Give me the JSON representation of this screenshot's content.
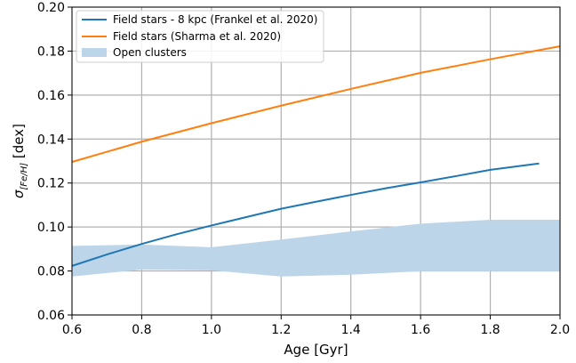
{
  "chart_data": {
    "type": "line",
    "xlabel": "Age [Gyr]",
    "ylabel_main": "σ",
    "ylabel_sub": "[Fe/H]",
    "ylabel_unit": " [dex]",
    "xlim": [
      0.6,
      2.0
    ],
    "ylim": [
      0.06,
      0.2
    ],
    "xticks": [
      0.6,
      0.8,
      1.0,
      1.2,
      1.4,
      1.6,
      1.8,
      2.0
    ],
    "xtick_labels": [
      "0.6",
      "0.8",
      "1.0",
      "1.2",
      "1.4",
      "1.6",
      "1.8",
      "2.0"
    ],
    "yticks": [
      0.06,
      0.08,
      0.1,
      0.12,
      0.14,
      0.16,
      0.18,
      0.2
    ],
    "ytick_labels": [
      "0.06",
      "0.08",
      "0.10",
      "0.12",
      "0.14",
      "0.16",
      "0.18",
      "0.20"
    ],
    "grid": true,
    "legend_position": "top-left",
    "series": [
      {
        "name": "Field stars - 8 kpc (Frankel et al. 2020)",
        "color": "#1f77b4",
        "x": [
          0.6,
          0.7,
          0.8,
          0.9,
          1.0,
          1.1,
          1.2,
          1.3,
          1.4,
          1.5,
          1.6,
          1.7,
          1.8,
          1.94
        ],
        "y": [
          0.0823,
          0.0875,
          0.0923,
          0.0967,
          0.1007,
          0.1045,
          0.1083,
          0.1115,
          0.1146,
          0.1176,
          0.1203,
          0.1231,
          0.126,
          0.1289
        ]
      },
      {
        "name": "Field stars (Sharma et al. 2020)",
        "color": "#ff7f0e",
        "x": [
          0.6,
          0.8,
          1.0,
          1.2,
          1.4,
          1.6,
          1.8,
          2.0
        ],
        "y": [
          0.1296,
          0.1388,
          0.1472,
          0.1552,
          0.1628,
          0.1701,
          0.1763,
          0.1822
        ]
      }
    ],
    "band": {
      "name": "Open clusters",
      "color": "#bcd5e8",
      "x": [
        0.6,
        0.8,
        1.0,
        1.2,
        1.4,
        1.6,
        1.8,
        2.0
      ],
      "upper": [
        0.0914,
        0.092,
        0.0908,
        0.0943,
        0.098,
        0.1015,
        0.1033,
        0.1033
      ],
      "lower": [
        0.0775,
        0.0806,
        0.0803,
        0.0775,
        0.0783,
        0.0799,
        0.0799,
        0.0799
      ]
    }
  }
}
